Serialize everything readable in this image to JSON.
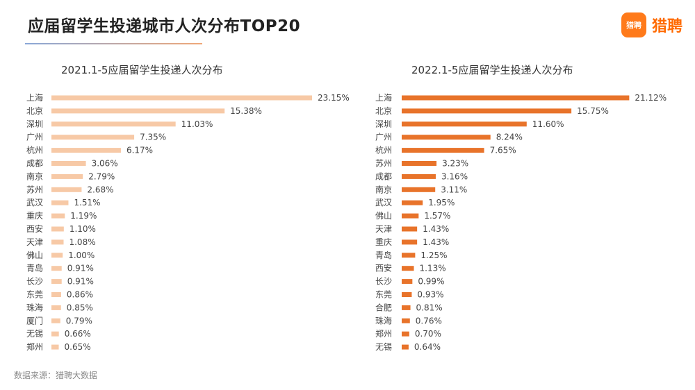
{
  "header": {
    "title": "应届留学生投递城市人次分布TOP20"
  },
  "logo": {
    "mark": "猎聘",
    "text": "猎聘"
  },
  "source": "数据来源：猎聘大数据",
  "colors": {
    "left_bar": "#f7c9a6",
    "right_bar": "#e8732a"
  },
  "chart_data": [
    {
      "type": "bar",
      "orientation": "horizontal",
      "title": "2021.1-5应届留学生投递人次分布",
      "value_unit": "%",
      "categories": [
        "上海",
        "北京",
        "深圳",
        "广州",
        "杭州",
        "成都",
        "南京",
        "苏州",
        "武汉",
        "重庆",
        "西安",
        "天津",
        "佛山",
        "青岛",
        "长沙",
        "东莞",
        "珠海",
        "厦门",
        "无锡",
        "郑州"
      ],
      "values": [
        23.15,
        15.38,
        11.03,
        7.35,
        6.17,
        3.06,
        2.79,
        2.68,
        1.51,
        1.19,
        1.1,
        1.08,
        1.0,
        0.91,
        0.91,
        0.86,
        0.85,
        0.79,
        0.66,
        0.65
      ],
      "labels": [
        "23.15%",
        "15.38%",
        "11.03%",
        "7.35%",
        "6.17%",
        "3.06%",
        "2.79%",
        "2.68%",
        "1.51%",
        "1.19%",
        "1.10%",
        "1.08%",
        "1.00%",
        "0.91%",
        "0.91%",
        "0.86%",
        "0.85%",
        "0.79%",
        "0.66%",
        "0.65%"
      ],
      "grid": false
    },
    {
      "type": "bar",
      "orientation": "horizontal",
      "title": "2022.1-5应届留学生投递人次分布",
      "value_unit": "%",
      "categories": [
        "上海",
        "北京",
        "深圳",
        "广州",
        "杭州",
        "苏州",
        "成都",
        "南京",
        "武汉",
        "佛山",
        "天津",
        "重庆",
        "青岛",
        "西安",
        "长沙",
        "东莞",
        "合肥",
        "珠海",
        "郑州",
        "无锡"
      ],
      "values": [
        21.12,
        15.75,
        11.6,
        8.24,
        7.65,
        3.23,
        3.16,
        3.11,
        1.95,
        1.57,
        1.43,
        1.43,
        1.25,
        1.13,
        0.99,
        0.93,
        0.81,
        0.76,
        0.7,
        0.64
      ],
      "labels": [
        "21.12%",
        "15.75%",
        "11.60%",
        "8.24%",
        "7.65%",
        "3.23%",
        "3.16%",
        "3.11%",
        "1.95%",
        "1.57%",
        "1.43%",
        "1.43%",
        "1.25%",
        "1.13%",
        "0.99%",
        "0.93%",
        "0.81%",
        "0.76%",
        "0.70%",
        "0.64%"
      ],
      "grid": false
    }
  ]
}
